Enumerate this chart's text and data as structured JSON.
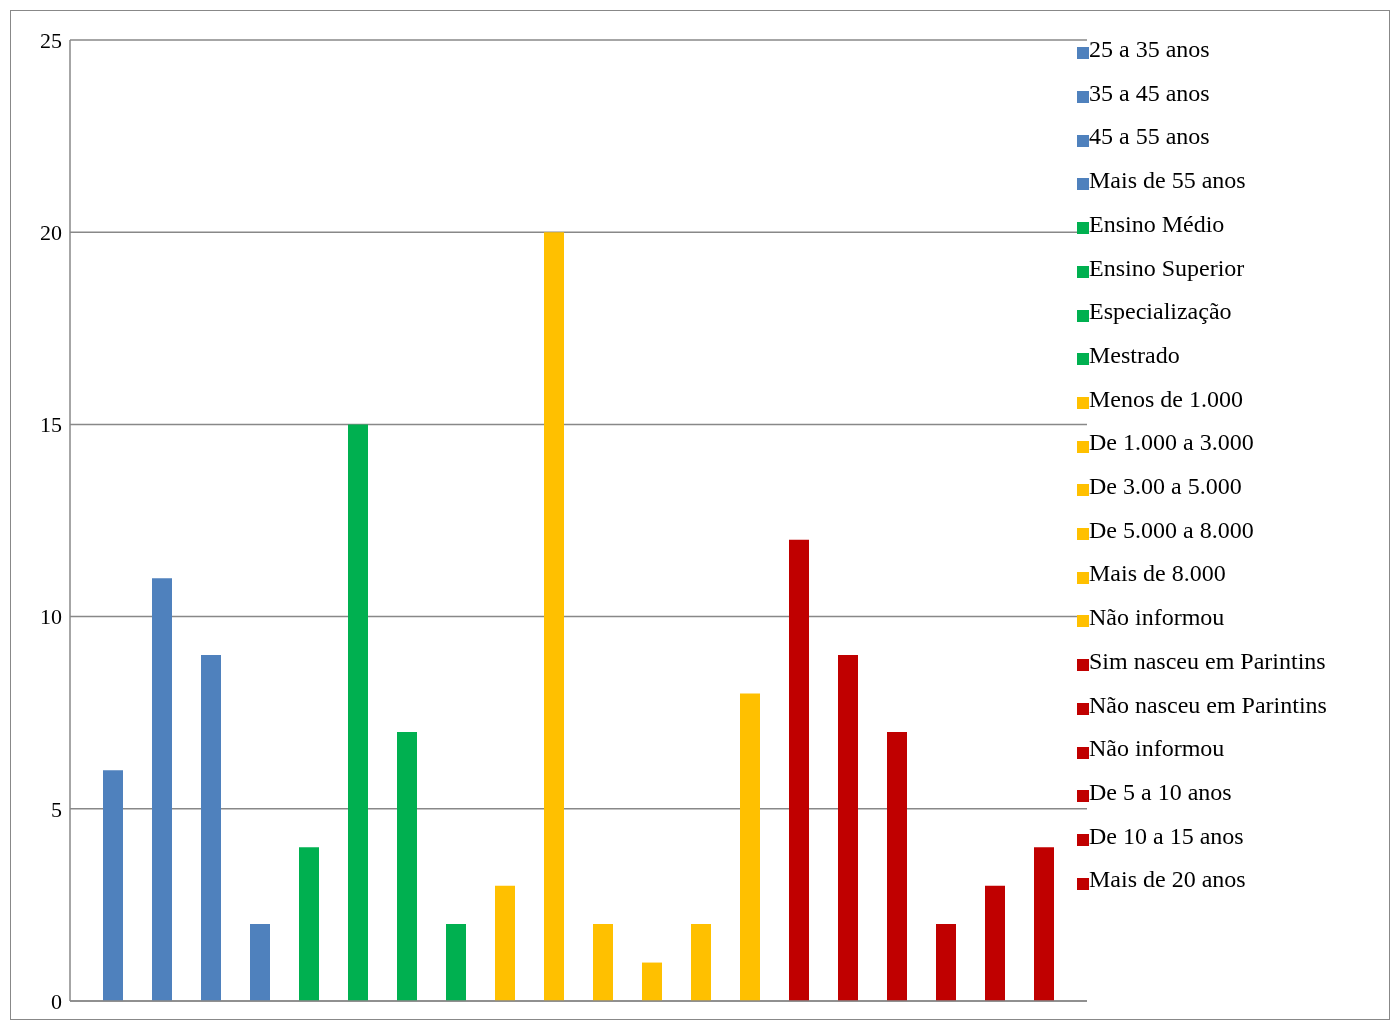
{
  "chart_data": {
    "type": "bar",
    "categories": [
      null
    ],
    "series": [
      {
        "name": "25 a 35 anos",
        "color": "#4f81bd",
        "values": [
          6
        ]
      },
      {
        "name": "35 a 45 anos",
        "color": "#4f81bd",
        "values": [
          11
        ]
      },
      {
        "name": "45 a 55 anos",
        "color": "#4f81bd",
        "values": [
          9
        ]
      },
      {
        "name": "Mais de 55 anos",
        "color": "#4f81bd",
        "values": [
          2
        ]
      },
      {
        "name": "Ensino Médio",
        "color": "#00b050",
        "values": [
          4
        ]
      },
      {
        "name": "Ensino Superior",
        "color": "#00b050",
        "values": [
          15
        ]
      },
      {
        "name": "Especialização",
        "color": "#00b050",
        "values": [
          7
        ]
      },
      {
        "name": "Mestrado",
        "color": "#00b050",
        "values": [
          2
        ]
      },
      {
        "name": "Menos de 1.000",
        "color": "#ffc000",
        "values": [
          3
        ]
      },
      {
        "name": "De 1.000 a 3.000",
        "color": "#ffc000",
        "values": [
          20
        ]
      },
      {
        "name": "De 3.00 a 5.000",
        "color": "#ffc000",
        "values": [
          2
        ]
      },
      {
        "name": "De 5.000 a 8.000",
        "color": "#ffc000",
        "values": [
          1
        ]
      },
      {
        "name": "Mais de 8.000",
        "color": "#ffc000",
        "values": [
          2
        ]
      },
      {
        "name": "Não informou",
        "color": "#ffc000",
        "values": [
          8
        ]
      },
      {
        "name": "Sim nasceu em Parintins",
        "color": "#c00000",
        "values": [
          12
        ]
      },
      {
        "name": "Não nasceu em Parintins",
        "color": "#c00000",
        "values": [
          9
        ]
      },
      {
        "name": "Não informou",
        "color": "#c00000",
        "values": [
          7
        ]
      },
      {
        "name": "De 5 a 10 anos",
        "color": "#c00000",
        "values": [
          2
        ]
      },
      {
        "name": "De 10 a 15 anos",
        "color": "#c00000",
        "values": [
          3
        ]
      },
      {
        "name": "Mais de 20 anos",
        "color": "#c00000",
        "values": [
          4
        ]
      }
    ],
    "ylim": [
      0,
      25
    ],
    "yticks": [
      0,
      5,
      10,
      15,
      20,
      25
    ],
    "grid": "y",
    "legend": "right"
  }
}
